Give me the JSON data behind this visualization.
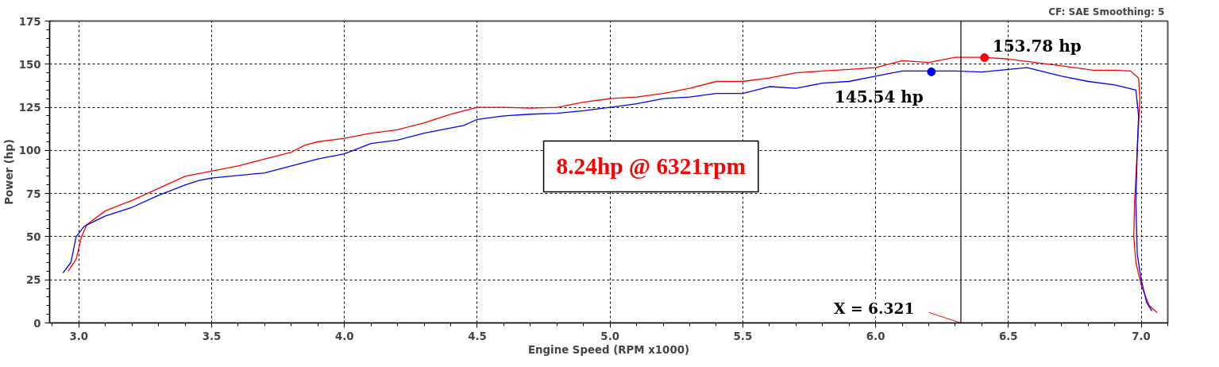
{
  "chart_data": {
    "type": "line",
    "xlabel": "Engine Speed (RPM x1000)",
    "ylabel": "Power (hp)",
    "subtitle": "CF: SAE  Smoothing: 5",
    "xlim": [
      2.89,
      7.1
    ],
    "ylim": [
      0,
      175
    ],
    "xticks": [
      {
        "value": 3.0,
        "label": "3.0"
      },
      3.5,
      {
        "value": 4.0,
        "label": "4.0"
      },
      4.5,
      {
        "value": 5.0,
        "label": "5.0"
      },
      5.5,
      {
        "value": 6.0,
        "label": "6.0"
      },
      6.5,
      {
        "value": 7.0,
        "label": "7.0"
      }
    ],
    "yticks": [
      0,
      25,
      50,
      75,
      100,
      125,
      150,
      175
    ],
    "grid": true,
    "line_style": "solid",
    "marker": "none",
    "legend": false,
    "series": [
      {
        "color": "#ff0000",
        "x": [
          2.96,
          2.99,
          3.01,
          3.03,
          3.1,
          3.2,
          3.3,
          3.4,
          3.5,
          3.6,
          3.7,
          3.8,
          3.85,
          3.9,
          4.0,
          4.1,
          4.2,
          4.3,
          4.4,
          4.5,
          4.6,
          4.7,
          4.8,
          4.9,
          5.0,
          5.1,
          5.2,
          5.3,
          5.4,
          5.5,
          5.6,
          5.7,
          5.8,
          5.9,
          6.0,
          6.1,
          6.2,
          6.3,
          6.4,
          6.5,
          6.6,
          6.7,
          6.82,
          6.9,
          6.96,
          6.99,
          6.995,
          6.985,
          6.975,
          6.972,
          6.98,
          7.0,
          7.03,
          7.06
        ],
        "values": [
          30,
          37,
          50,
          57,
          65,
          71,
          78,
          85,
          88,
          91,
          95,
          99,
          103,
          105,
          107,
          110,
          112,
          116,
          121,
          125,
          125,
          124.5,
          125,
          128,
          130,
          131,
          133,
          136,
          140,
          140,
          142,
          145,
          146,
          147,
          148,
          152,
          151,
          154,
          154,
          153,
          151,
          149,
          146.5,
          146.5,
          146,
          142,
          130,
          100,
          70,
          50,
          35,
          22,
          10,
          6
        ]
      },
      {
        "color": "#0000ff",
        "x": [
          2.94,
          2.97,
          2.99,
          3.02,
          3.1,
          3.2,
          3.3,
          3.4,
          3.45,
          3.5,
          3.6,
          3.7,
          3.8,
          3.9,
          4.0,
          4.1,
          4.2,
          4.3,
          4.4,
          4.45,
          4.5,
          4.6,
          4.7,
          4.8,
          4.9,
          5.0,
          5.1,
          5.2,
          5.3,
          5.4,
          5.5,
          5.6,
          5.7,
          5.8,
          5.9,
          6.0,
          6.1,
          6.2,
          6.3,
          6.4,
          6.5,
          6.57,
          6.7,
          6.8,
          6.9,
          6.98,
          6.99,
          6.985,
          6.98,
          6.985,
          7.0,
          7.02,
          7.04
        ],
        "values": [
          29,
          35,
          50,
          56,
          62,
          67,
          74,
          80,
          82.5,
          84,
          85.5,
          87,
          91,
          95,
          98,
          104,
          106,
          110,
          113,
          114.5,
          118,
          120,
          121,
          121.5,
          123,
          125,
          127,
          130,
          131,
          133,
          133,
          137,
          136,
          139,
          140,
          143,
          146,
          146,
          146,
          145.5,
          147,
          148,
          143,
          140,
          138,
          135,
          120,
          100,
          70,
          40,
          25,
          12,
          7
        ]
      }
    ],
    "ref_lines": [
      {
        "axis": "x",
        "value": 6.321,
        "label": "X = 6.321",
        "color": "#000000"
      }
    ],
    "annotations": [
      {
        "text": "153.78 hp",
        "x": 6.41,
        "y": 153.78
      },
      {
        "text": "145.54 hp",
        "x": 6.21,
        "y": 145.54
      },
      "8.24hp @ 6321rpm"
    ]
  }
}
